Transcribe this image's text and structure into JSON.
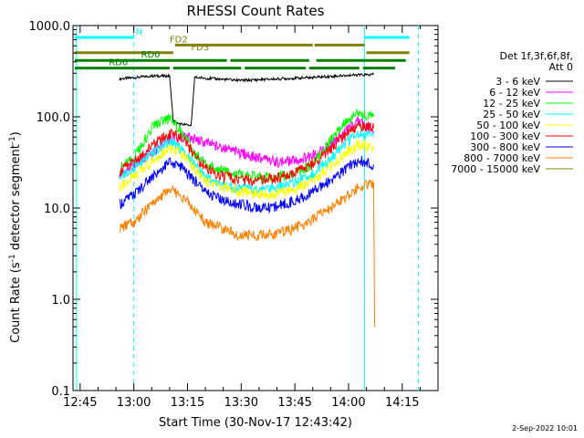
{
  "chart_data": {
    "type": "line",
    "title": "RHESSI Count Rates",
    "xlabel": "Start Time (30-Nov-17 12:43:42)",
    "ylabel_main": "Count Rate (s",
    "ylabel_sup1": "-1",
    "ylabel_mid": " detector segment",
    "ylabel_sup2": "-1",
    "ylabel_end": ")",
    "y_scale": "log",
    "ylim": [
      0.1,
      1000
    ],
    "y_ticks": [
      0.1,
      1,
      10,
      100,
      1000
    ],
    "y_tick_labels": [
      "0.1",
      "1.0",
      "10.0",
      "100.0",
      "1000.0"
    ],
    "xlim_minutes": [
      -17,
      25
    ],
    "x_ticks_minutes": [
      -15,
      0,
      15,
      30,
      45,
      60,
      75
    ],
    "x_tick_labels": [
      "12:45",
      "13:00",
      "13:15",
      "13:30",
      "13:45",
      "14:00",
      "14:15"
    ],
    "legend_header": [
      "Det 1f,3f,6f,8f,",
      "Att 0"
    ],
    "legend_position": "right",
    "date_stamp": "2-Sep-2022 10:01",
    "series": [
      {
        "name": "3 - 6 keV",
        "color": "#000000",
        "x": [
          -4,
          5,
          10,
          11,
          12,
          16,
          17,
          30,
          50,
          60,
          67
        ],
        "y": [
          260,
          280,
          280,
          90,
          85,
          80,
          270,
          250,
          270,
          285,
          290
        ]
      },
      {
        "name": "6 - 12 keV",
        "color": "#ff00ff",
        "x": [
          -4,
          5,
          10,
          14,
          16,
          25,
          30,
          35,
          40,
          45,
          50,
          55,
          60,
          63,
          67
        ],
        "y": [
          23,
          40,
          55,
          60,
          58,
          45,
          40,
          35,
          32,
          33,
          38,
          50,
          75,
          90,
          70
        ]
      },
      {
        "name": "12 - 25 keV",
        "color": "#00ff00",
        "x": [
          -4,
          0,
          3,
          5,
          8,
          10,
          13,
          17,
          20,
          25,
          30,
          35,
          40,
          45,
          50,
          55,
          60,
          63,
          67
        ],
        "y": [
          27,
          35,
          55,
          75,
          90,
          95,
          70,
          40,
          30,
          25,
          23,
          22,
          22,
          24,
          30,
          55,
          95,
          110,
          100
        ]
      },
      {
        "name": "25 - 50 keV",
        "color": "#00ffff",
        "x": [
          -4,
          0,
          5,
          10,
          13,
          17,
          20,
          25,
          30,
          35,
          40,
          45,
          50,
          55,
          60,
          63,
          67
        ],
        "y": [
          22,
          28,
          40,
          55,
          45,
          30,
          22,
          18,
          16,
          16,
          17,
          19,
          24,
          35,
          55,
          65,
          60
        ]
      },
      {
        "name": "50 - 100 keV",
        "color": "#ffff00",
        "x": [
          -4,
          0,
          5,
          10,
          13,
          17,
          20,
          25,
          30,
          35,
          40,
          45,
          50,
          55,
          60,
          63,
          67
        ],
        "y": [
          17,
          22,
          32,
          45,
          40,
          27,
          20,
          17,
          15,
          14,
          14,
          16,
          20,
          28,
          42,
          50,
          45
        ]
      },
      {
        "name": "100 - 300 keV",
        "color": "#ff0000",
        "x": [
          -4,
          0,
          5,
          10,
          13,
          17,
          20,
          25,
          30,
          35,
          40,
          45,
          50,
          55,
          60,
          63,
          67
        ],
        "y": [
          25,
          32,
          48,
          65,
          60,
          38,
          27,
          22,
          20,
          20,
          21,
          24,
          30,
          45,
          68,
          80,
          75
        ]
      },
      {
        "name": "300 - 800 keV",
        "color": "#0000ff",
        "x": [
          -4,
          0,
          5,
          10,
          13,
          17,
          20,
          25,
          30,
          35,
          40,
          45,
          50,
          55,
          60,
          63,
          67
        ],
        "y": [
          11,
          14,
          22,
          32,
          28,
          20,
          15,
          12,
          11,
          10,
          10.5,
          12,
          15,
          20,
          28,
          33,
          30
        ]
      },
      {
        "name": "800 - 7000 keV",
        "color": "#ff8000",
        "x": [
          -4,
          0,
          5,
          10,
          13,
          17,
          20,
          25,
          30,
          35,
          40,
          45,
          50,
          55,
          60,
          63,
          66,
          67,
          67.3
        ],
        "y": [
          6,
          7,
          11,
          16,
          14,
          9.5,
          7,
          6,
          5,
          5,
          5.2,
          6,
          7.5,
          10,
          14,
          17,
          18,
          18,
          0.5
        ]
      },
      {
        "name": "7000 - 15000 keV",
        "color": "#808000",
        "x": [],
        "y": []
      }
    ],
    "flags": [
      {
        "label": "N",
        "color": "#00ffff",
        "row_y": 1.0,
        "segments": [
          [
            -16.5,
            0
          ],
          [
            64.5,
            77
          ]
        ]
      },
      {
        "label": "FD2",
        "color": "#808000",
        "row_y": 0.8,
        "segments": [
          [
            11.5,
            50
          ],
          [
            50.5,
            64.5
          ]
        ]
      },
      {
        "label": "FD3",
        "color": "#808000",
        "row_y": 0.6,
        "segments": [
          [
            -16.5,
            11
          ],
          [
            65,
            77
          ]
        ]
      },
      {
        "label": "RD0",
        "color": "#008000",
        "row_y": 0.4,
        "segments": [
          [
            -16.5,
            26
          ],
          [
            27,
            49
          ],
          [
            51,
            76
          ]
        ]
      },
      {
        "label": "RD6",
        "color": "#008000",
        "row_y": 0.2,
        "segments": [
          [
            -16.5,
            10
          ],
          [
            11,
            30
          ],
          [
            31,
            48
          ],
          [
            49,
            63
          ],
          [
            64,
            73
          ]
        ]
      }
    ],
    "vertical_lines": [
      {
        "kind": "solid",
        "color": "#00ffff",
        "x": -16
      },
      {
        "kind": "dashed",
        "color": "#00ffff",
        "x": 0
      },
      {
        "kind": "solid",
        "color": "#00ffff",
        "x": 64.5
      },
      {
        "kind": "dashed",
        "color": "#00ffff",
        "x": 79.5
      }
    ]
  }
}
